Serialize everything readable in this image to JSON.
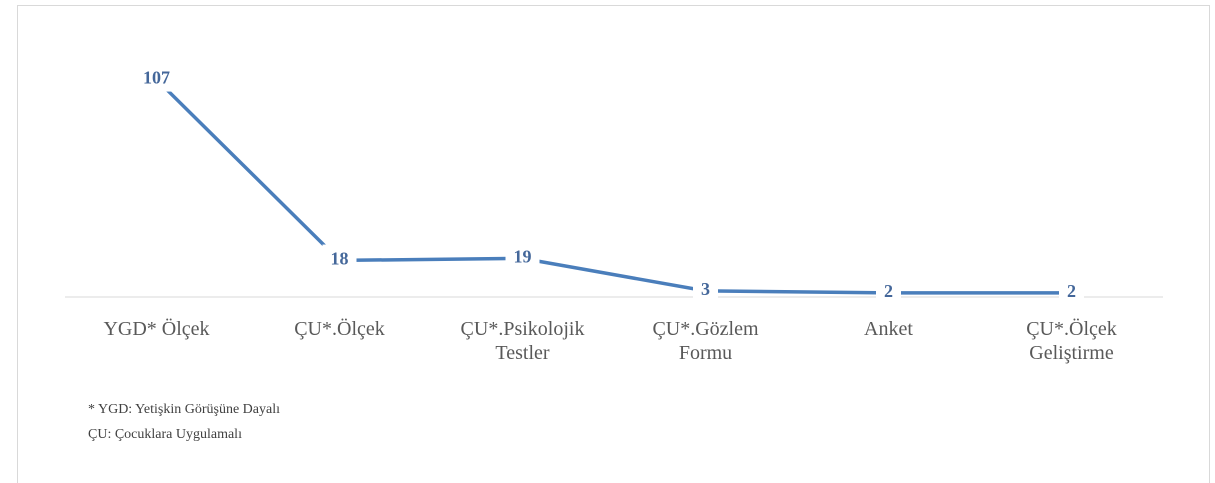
{
  "chart_data": {
    "type": "line",
    "categories": [
      "YGD* Ölçek",
      "ÇU*.Ölçek",
      "ÇU*.Psikolojik\nTestler",
      "ÇU*.Gözlem\nFormu",
      "Anket",
      "ÇU*.Ölçek\nGeliştirme"
    ],
    "series": [
      {
        "name": null,
        "color": "#4a7ebb",
        "values": [
          107,
          18,
          19,
          3,
          2,
          2
        ]
      }
    ],
    "ylim": [
      0,
      120
    ],
    "notes": [
      "* YGD: Yetişkin Görüşüne Dayalı",
      "ÇU: Çocuklara Uygulamalı"
    ]
  }
}
